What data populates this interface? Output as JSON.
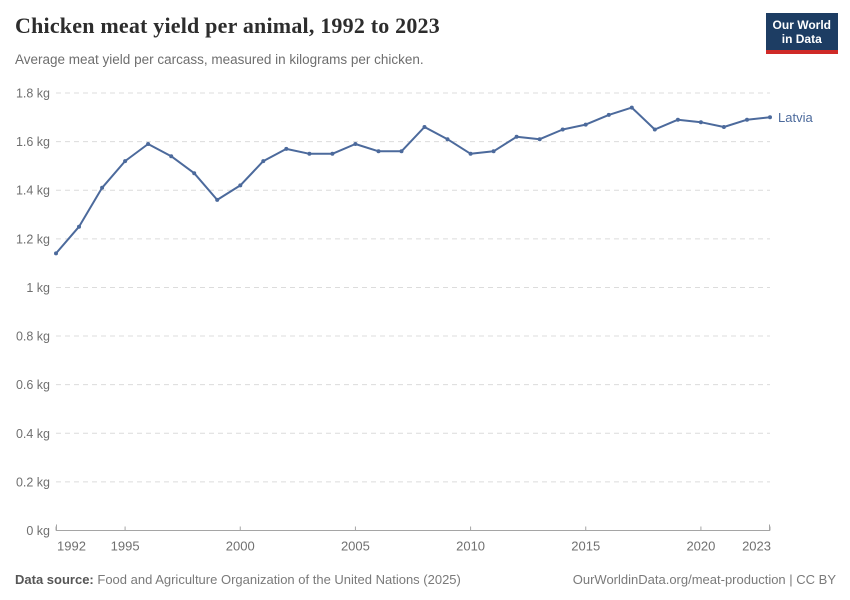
{
  "header": {
    "title": "Chicken meat yield per animal, 1992 to 2023",
    "subtitle": "Average meat yield per carcass, measured in kilograms per chicken.",
    "logo": {
      "line1": "Our World",
      "line2": "in Data"
    }
  },
  "chart_data": {
    "type": "line",
    "title": "Chicken meat yield per animal, 1992 to 2023",
    "xlabel": "",
    "ylabel": "kg",
    "xlim": [
      1992,
      2023
    ],
    "ylim": [
      0,
      1.8
    ],
    "grid": "horizontal-dashed",
    "legend_position": "line-end-label",
    "x": [
      1992,
      1993,
      1994,
      1995,
      1996,
      1997,
      1998,
      1999,
      2000,
      2001,
      2002,
      2003,
      2004,
      2005,
      2006,
      2007,
      2008,
      2009,
      2010,
      2011,
      2012,
      2013,
      2014,
      2015,
      2016,
      2017,
      2018,
      2019,
      2020,
      2021,
      2022,
      2023
    ],
    "series": [
      {
        "name": "Latvia",
        "color": "#4C6A9C",
        "values": [
          1.14,
          1.25,
          1.41,
          1.52,
          1.59,
          1.54,
          1.47,
          1.36,
          1.42,
          1.52,
          1.57,
          1.55,
          1.55,
          1.59,
          1.56,
          1.56,
          1.66,
          1.61,
          1.55,
          1.56,
          1.62,
          1.61,
          1.65,
          1.67,
          1.71,
          1.74,
          1.65,
          1.69,
          1.68,
          1.66,
          1.69,
          1.7
        ]
      }
    ],
    "y_ticks": [
      {
        "v": 0,
        "label": "0 kg"
      },
      {
        "v": 0.2,
        "label": "0.2 kg"
      },
      {
        "v": 0.4,
        "label": "0.4 kg"
      },
      {
        "v": 0.6,
        "label": "0.6 kg"
      },
      {
        "v": 0.8,
        "label": "0.8 kg"
      },
      {
        "v": 1,
        "label": "1 kg"
      },
      {
        "v": 1.2,
        "label": "1.2 kg"
      },
      {
        "v": 1.4,
        "label": "1.4 kg"
      },
      {
        "v": 1.6,
        "label": "1.6 kg"
      },
      {
        "v": 1.8,
        "label": "1.8 kg"
      }
    ],
    "x_ticks": [
      {
        "v": 1992,
        "label": "1992"
      },
      {
        "v": 1995,
        "label": "1995"
      },
      {
        "v": 2000,
        "label": "2000"
      },
      {
        "v": 2005,
        "label": "2005"
      },
      {
        "v": 2010,
        "label": "2010"
      },
      {
        "v": 2015,
        "label": "2015"
      },
      {
        "v": 2020,
        "label": "2020"
      },
      {
        "v": 2023,
        "label": "2023"
      }
    ]
  },
  "footer": {
    "source_label": "Data source:",
    "source_text": "Food and Agriculture Organization of the United Nations (2025)",
    "link_text": "OurWorldinData.org/meat-production | CC BY"
  },
  "colors": {
    "accent": "#4C6A9C",
    "logo_bg": "#1d3d63",
    "logo_stripe": "#cf2a27",
    "grid": "#dcdcdc",
    "axis": "#a5a5a5",
    "tick_label": "#707070"
  }
}
